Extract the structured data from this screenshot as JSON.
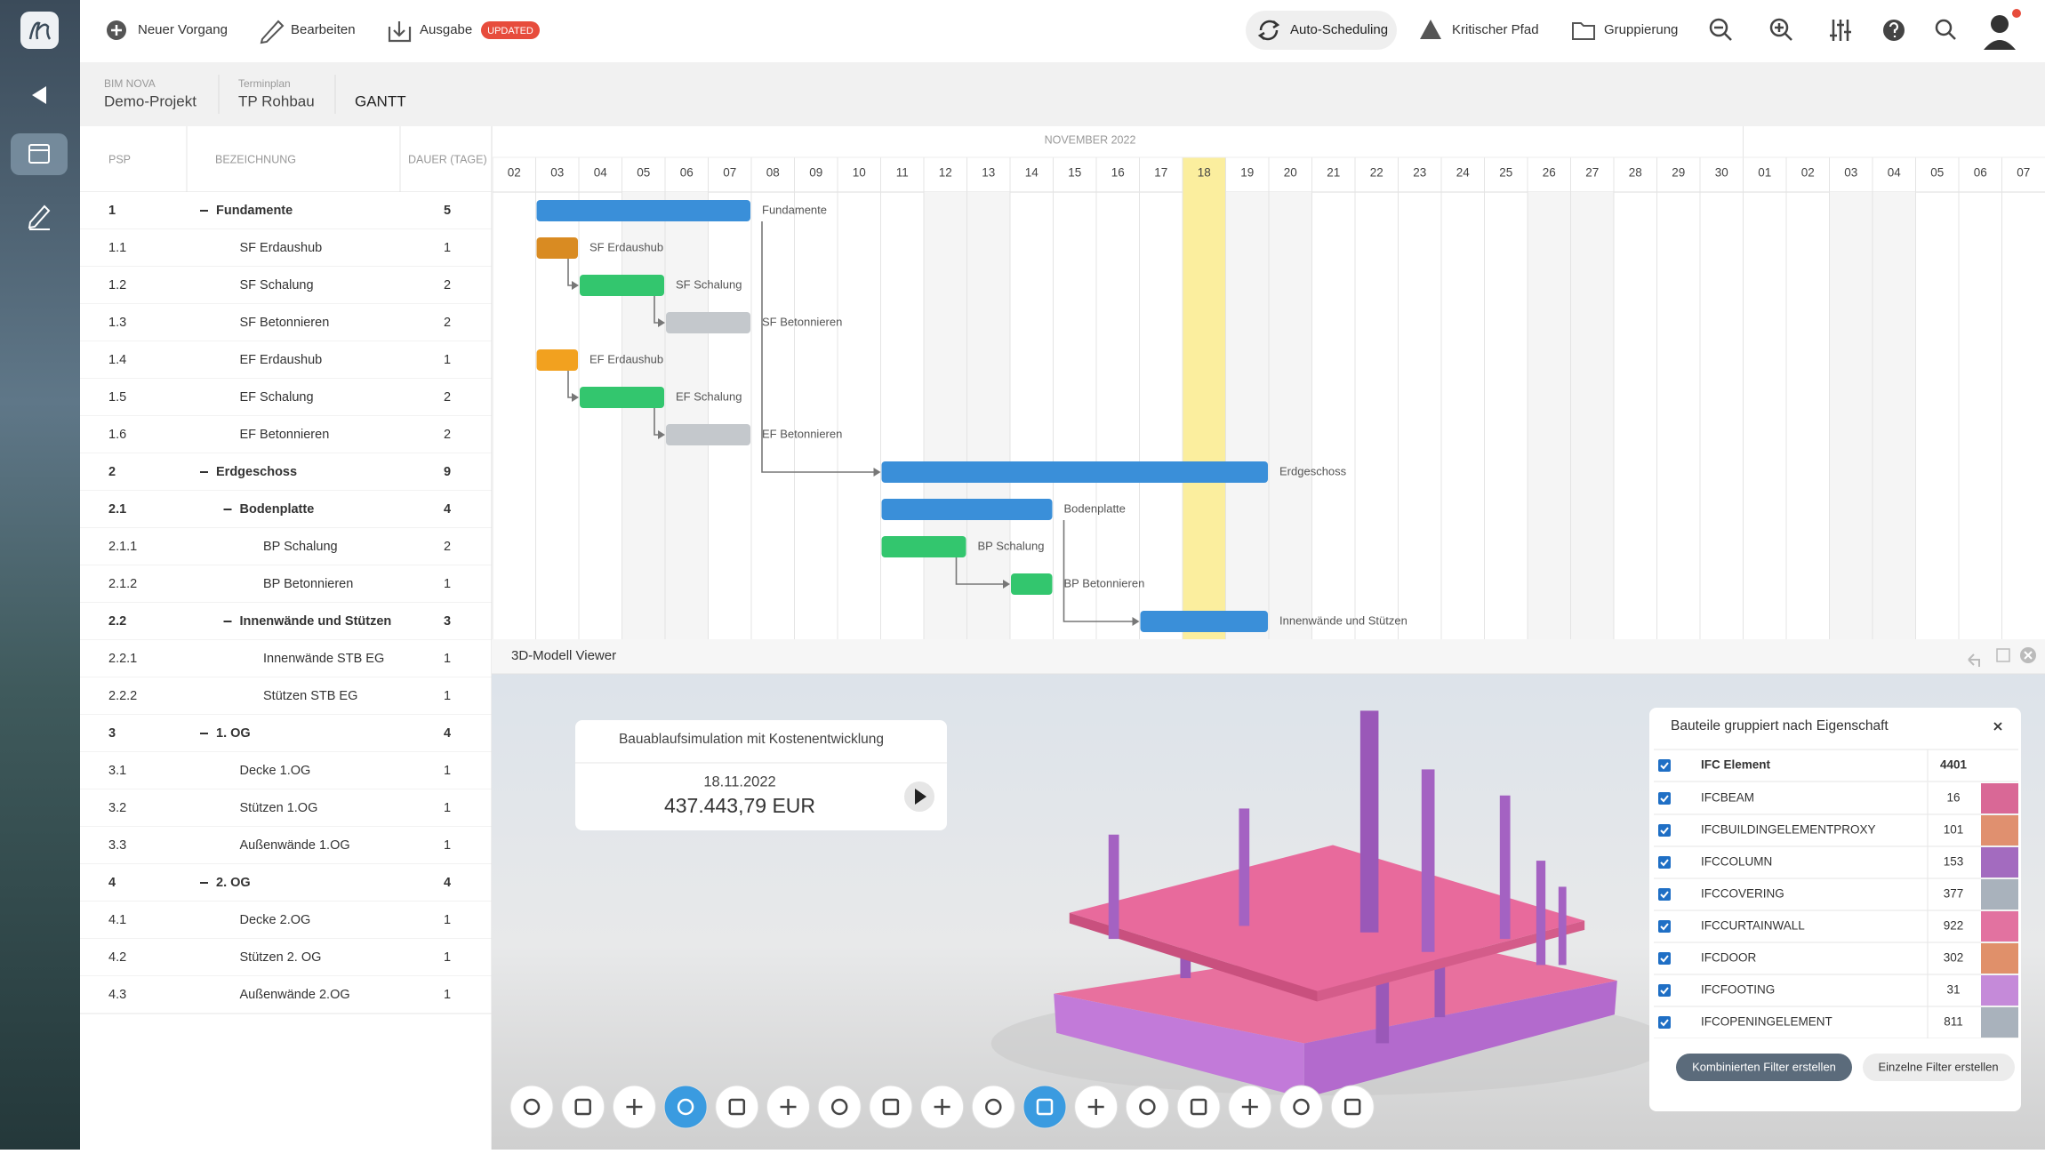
{
  "toolbar": {
    "new": "Neuer Vorgang",
    "edit": "Bearbeiten",
    "export": "Ausgabe",
    "badge": "UPDATED",
    "auto": "Auto-Scheduling",
    "critical": "Kritischer Pfad",
    "group": "Gruppierung"
  },
  "breadcrumb": [
    {
      "label": "BIM NOVA",
      "value": "Demo-Projekt"
    },
    {
      "label": "Terminplan",
      "value": "TP Rohbau"
    }
  ],
  "view": "GANTT",
  "table": {
    "headers": [
      "PSP",
      "BEZEICHNUNG",
      "DAUER (TAGE)"
    ],
    "rows": [
      {
        "psp": "1",
        "name": "Fundamente",
        "duration": 5,
        "start": "03",
        "color": "#3a8fd9"
      },
      {
        "psp": "1.1",
        "name": "SF Erdaushub",
        "duration": 1,
        "start": "03",
        "color": "#d98b22"
      },
      {
        "psp": "1.2",
        "name": "SF Schalung",
        "duration": 2,
        "start": "04",
        "color": "#33c66e"
      },
      {
        "psp": "1.3",
        "name": "SF Betonnieren",
        "duration": 2,
        "start": "06",
        "color": "#c4c8cc"
      },
      {
        "psp": "1.4",
        "name": "EF Erdaushub",
        "duration": 1,
        "start": "03",
        "color": "#f2a11f"
      },
      {
        "psp": "1.5",
        "name": "EF Schalung",
        "duration": 2,
        "start": "04",
        "color": "#33c66e"
      },
      {
        "psp": "1.6",
        "name": "EF Betonnieren",
        "duration": 2,
        "start": "06",
        "color": "#c4c8cc"
      },
      {
        "psp": "2",
        "name": "Erdgeschoss",
        "duration": 9,
        "start": "11",
        "color": "#3a8fd9"
      },
      {
        "psp": "2.1",
        "name": "Bodenplatte",
        "duration": 4,
        "start": "11",
        "color": "#3a8fd9"
      },
      {
        "psp": "2.1.1",
        "name": "BP Schalung",
        "duration": 2,
        "start": "11",
        "color": "#33c66e"
      },
      {
        "psp": "2.1.2",
        "name": "BP Betonnieren",
        "duration": 1,
        "start": "14",
        "color": "#33c66e"
      },
      {
        "psp": "2.2",
        "name": "Innenwände und Stützen",
        "duration": 3,
        "start": "17",
        "color": "#3a8fd9"
      },
      {
        "psp": "2.2.1",
        "name": "Innenwände STB EG",
        "duration": 1
      },
      {
        "psp": "2.2.2",
        "name": "Stützen STB EG",
        "duration": 1
      },
      {
        "psp": "3",
        "name": "1. OG",
        "duration": 4
      },
      {
        "psp": "3.1",
        "name": "Decke 1.OG",
        "duration": 1
      },
      {
        "psp": "3.2",
        "name": "Stützen 1.OG",
        "duration": 1
      },
      {
        "psp": "3.3",
        "name": "Außenwände 1.OG",
        "duration": 1
      },
      {
        "psp": "4",
        "name": "2. OG",
        "duration": 4
      },
      {
        "psp": "4.1",
        "name": "Decke 2.OG",
        "duration": 1
      },
      {
        "psp": "4.2",
        "name": "Stützen 2. OG",
        "duration": 1
      },
      {
        "psp": "4.3",
        "name": "Außenwände 2.OG",
        "duration": 1
      }
    ]
  },
  "gantt": {
    "month": "NOVEMBER 2022",
    "days": [
      "02",
      "03",
      "04",
      "05",
      "06",
      "07",
      "08",
      "09",
      "10",
      "11",
      "12",
      "13",
      "14",
      "15",
      "16",
      "17",
      "18",
      "19",
      "20",
      "21",
      "22",
      "23",
      "24",
      "25",
      "26",
      "27",
      "28",
      "29",
      "30",
      "01",
      "02",
      "03",
      "04",
      "05",
      "06",
      "07"
    ]
  },
  "viewer": {
    "title": "3D-Modell Viewer",
    "sim": {
      "title": "Bauablaufsimulation mit Kostenentwicklung",
      "date": "18.11.2022",
      "amount": "437.443,79 EUR"
    }
  },
  "filter": {
    "title": "Bauteile gruppiert nach Eigenschaft",
    "header": {
      "name": "IFC Element",
      "count": 4401
    },
    "rows": [
      {
        "name": "IFCBEAM",
        "count": 16,
        "color": "#d96896"
      },
      {
        "name": "IFCBUILDINGELEMENTPROXY",
        "count": 101,
        "color": "#e0906f"
      },
      {
        "name": "IFCCOLUMN",
        "count": 153,
        "color": "#a36bbf"
      },
      {
        "name": "IFCCOVERING",
        "count": 377,
        "color": "#a9b2bc"
      },
      {
        "name": "IFCCURTAINWALL",
        "count": 922,
        "color": "#e272a0"
      },
      {
        "name": "IFCDOOR",
        "count": 302,
        "color": "#e0906a"
      },
      {
        "name": "IFCFOOTING",
        "count": 31,
        "color": "#c58ad9"
      },
      {
        "name": "IFCOPENINGELEMENT",
        "count": 811,
        "color": "#a9b2bc"
      }
    ],
    "buttons": [
      "Kombinierten Filter erstellen",
      "Einzelne Filter erstellen"
    ]
  }
}
